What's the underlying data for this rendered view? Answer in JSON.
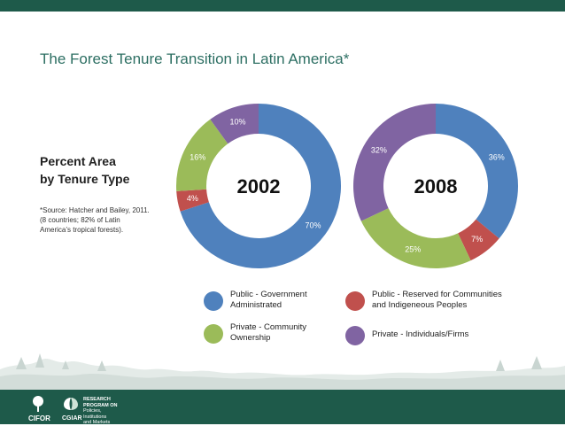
{
  "slide": {
    "title": "The Forest Tenure Transition in Latin America*",
    "heading_line1": "Percent Area",
    "heading_line2": "by Tenure Type",
    "source_line1": "*Source: Hatcher and Bailey, 2011.",
    "source_line2": "(8 countries; 82% of Latin",
    "source_line3": "America’s tropical forests)."
  },
  "colors": {
    "brand_bar": "#1e5a4a",
    "title": "#2d6f63"
  },
  "chart_data": [
    {
      "type": "pie",
      "variant": "donut",
      "center_label": "2002",
      "categories": [
        "Public - Government Administrated",
        "Public - Reserved for Communities and Indigeneous Peoples",
        "Private - Community Ownership",
        "Private - Individuals/Firms"
      ],
      "values": [
        70,
        4,
        16,
        10
      ],
      "labels": [
        "70%",
        "4%",
        "16%",
        "10%"
      ],
      "colors": [
        "#4f81bd",
        "#c0504d",
        "#9bbb59",
        "#8064a2"
      ]
    },
    {
      "type": "pie",
      "variant": "donut",
      "center_label": "2008",
      "categories": [
        "Public - Government Administrated",
        "Public - Reserved for Communities and Indigeneous Peoples",
        "Private - Community Ownership",
        "Private - Individuals/Firms"
      ],
      "values": [
        36,
        7,
        25,
        32
      ],
      "labels": [
        "36%",
        "7%",
        "25%",
        "32%"
      ],
      "colors": [
        "#4f81bd",
        "#c0504d",
        "#9bbb59",
        "#8064a2"
      ]
    }
  ],
  "legend": [
    {
      "line1": "Public - Government",
      "line2": "Administrated",
      "color": "#4f81bd"
    },
    {
      "line1": "Public - Reserved for Communities",
      "line2": "and Indigeneous Peoples",
      "color": "#c0504d"
    },
    {
      "line1": "Private - Community",
      "line2": "Ownership",
      "color": "#9bbb59"
    },
    {
      "line1": "Private - Individuals/Firms",
      "line2": "",
      "color": "#8064a2"
    }
  ],
  "footer": {
    "cifor_logo": "CIFOR",
    "cgiar_logo": "CGIAR",
    "program_line1": "RESEARCH",
    "program_line2": "PROGRAM ON",
    "program_line3": "Policies,",
    "program_line4": "Institutions",
    "program_line5": "and Markets"
  }
}
